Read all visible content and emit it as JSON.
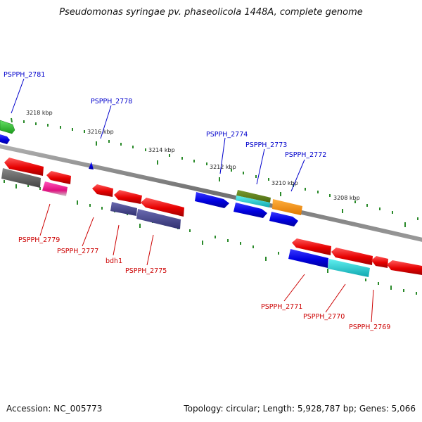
{
  "title": "Pseudomonas syringae pv. phaseolicola 1448A, complete genome",
  "footer": {
    "accession": "Accession: NC_005773",
    "topology": "Topology: circular;",
    "length": "Length: 5,928,787 bp;",
    "genes": "Genes: 5,066"
  },
  "colors": {
    "label_top": "#0000cc",
    "label_bottom": "#cc0000",
    "backbone": "#8a8a8a",
    "ticks": "#2a8a2a"
  },
  "kbp_labels": [
    "3218 kbp",
    "3216 kbp",
    "3214 kbp",
    "3212 kbp",
    "3210 kbp",
    "3208 kbp"
  ],
  "top_labels": [
    "PSPPH_2781",
    "PSPPH_2778",
    "PSPPH_2774",
    "PSPPH_2773",
    "PSPPH_2772"
  ],
  "bottom_labels": [
    "PSPPH_2779",
    "PSPPH_2777",
    "bdh1",
    "PSPPH_2775",
    "PSPPH_2771",
    "PSPPH_2770",
    "PSPPH_2769"
  ]
}
